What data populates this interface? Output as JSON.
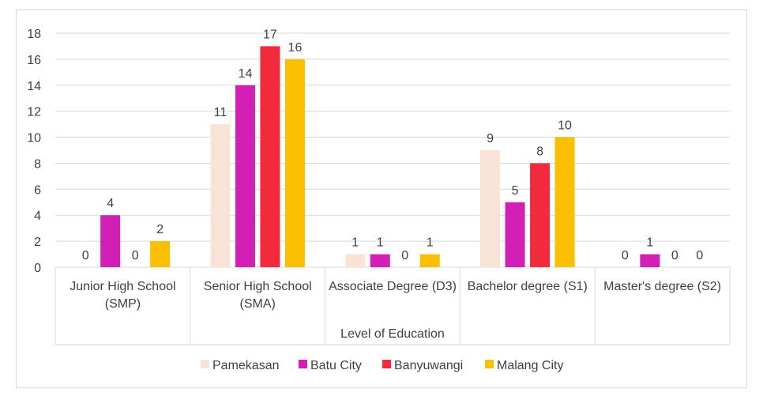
{
  "chart_data": {
    "type": "bar",
    "xlabel": "Level of Education",
    "ylabel": "",
    "ylim": [
      0,
      18
    ],
    "ytick_step": 2,
    "grid": true,
    "legend_position": "bottom",
    "categories": [
      [
        "Junior High School",
        "(SMP)"
      ],
      [
        "Senior High School",
        "(SMA)"
      ],
      [
        "Associate Degree (D3)"
      ],
      [
        "Bachelor degree (S1)"
      ],
      [
        "Master's degree (S2)"
      ]
    ],
    "series": [
      {
        "name": "Pamekasan",
        "color": "#f9e3d7",
        "values": [
          0,
          11,
          1,
          9,
          0
        ]
      },
      {
        "name": "Batu City",
        "color": "#d21fb5",
        "values": [
          4,
          14,
          1,
          5,
          1
        ]
      },
      {
        "name": "Banyuwangi",
        "color": "#f22a3c",
        "values": [
          0,
          17,
          0,
          8,
          0
        ]
      },
      {
        "name": "Malang City",
        "color": "#f9bf00",
        "values": [
          2,
          16,
          1,
          10,
          0
        ]
      }
    ]
  }
}
